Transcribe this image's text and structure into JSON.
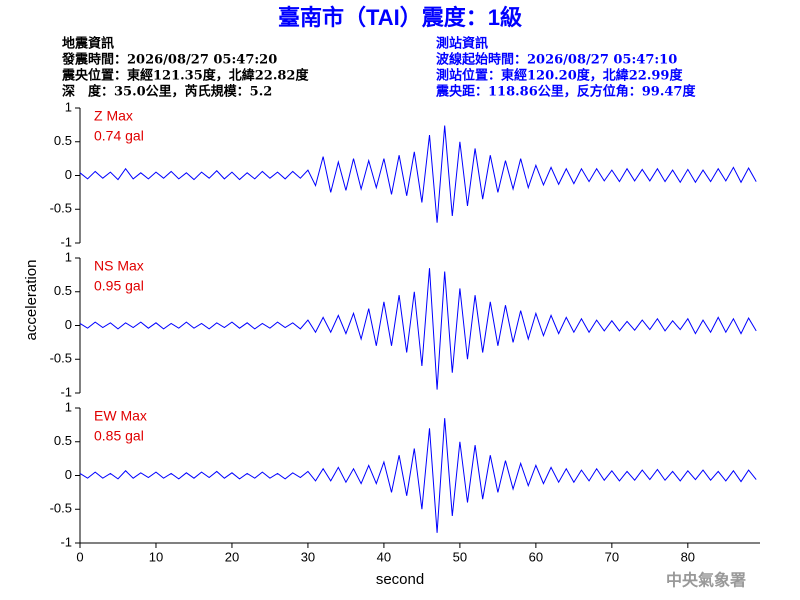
{
  "header": {
    "title": "臺南市（TAI）震度：1級",
    "event_info": [
      "地震資訊",
      "發震時間：2026/08/27 05:47:20",
      "震央位置：東經121.35度，北緯22.82度",
      "深　度：35.0公里，芮氏規模：5.2"
    ],
    "station_info": [
      "測站資訊",
      "波線起始時間：2026/08/27 05:47:10",
      "測站位置：東經120.20度，北緯22.99度",
      "震央距：118.86公里，反方位角：99.47度"
    ],
    "agency": "中央氣象署"
  },
  "chart_data": [
    {
      "type": "line",
      "title": "Z Max",
      "subtitle": "0.74 gal",
      "color": "#0000ff",
      "xlim": [
        0,
        89.5
      ],
      "ylim": [
        -1,
        1
      ],
      "yticks": [
        1,
        0.5,
        0,
        -0.5,
        -1
      ],
      "x": [
        0,
        1,
        2,
        3,
        4,
        5,
        6,
        7,
        8,
        9,
        10,
        11,
        12,
        13,
        14,
        15,
        16,
        17,
        18,
        19,
        20,
        21,
        22,
        23,
        24,
        25,
        26,
        27,
        28,
        29,
        30,
        31,
        32,
        33,
        34,
        35,
        36,
        37,
        38,
        39,
        40,
        41,
        42,
        43,
        44,
        45,
        46,
        47,
        48,
        49,
        50,
        51,
        52,
        53,
        54,
        55,
        56,
        57,
        58,
        59,
        60,
        61,
        62,
        63,
        64,
        65,
        66,
        67,
        68,
        69,
        70,
        71,
        72,
        73,
        74,
        75,
        76,
        77,
        78,
        79,
        80,
        81,
        82,
        83,
        84,
        85,
        86,
        87,
        88,
        89
      ],
      "values": [
        0.04,
        -0.05,
        0.06,
        -0.04,
        0.05,
        -0.06,
        0.1,
        -0.05,
        0.04,
        -0.05,
        0.05,
        -0.04,
        0.06,
        -0.05,
        0.04,
        -0.06,
        0.05,
        -0.04,
        0.07,
        -0.05,
        0.05,
        -0.06,
        0.04,
        -0.05,
        0.06,
        -0.04,
        0.05,
        -0.05,
        0.06,
        -0.04,
        0.08,
        -0.15,
        0.28,
        -0.25,
        0.2,
        -0.22,
        0.25,
        -0.2,
        0.22,
        -0.18,
        0.25,
        -0.28,
        0.3,
        -0.3,
        0.35,
        -0.4,
        0.6,
        -0.7,
        0.74,
        -0.6,
        0.5,
        -0.45,
        0.4,
        -0.35,
        0.3,
        -0.25,
        0.22,
        -0.2,
        0.25,
        -0.18,
        0.15,
        -0.14,
        0.12,
        -0.13,
        0.1,
        -0.12,
        0.1,
        -0.09,
        0.1,
        -0.08,
        0.08,
        -0.09,
        0.1,
        -0.08,
        0.09,
        -0.08,
        0.1,
        -0.09,
        0.08,
        -0.1,
        0.09,
        -0.1,
        0.08,
        -0.09,
        0.1,
        -0.08,
        0.12,
        -0.1,
        0.11,
        -0.09
      ]
    },
    {
      "type": "line",
      "title": "NS Max",
      "subtitle": "0.95 gal",
      "color": "#0000ff",
      "ylabel": "acceleration",
      "xlim": [
        0,
        89.5
      ],
      "ylim": [
        -1,
        1
      ],
      "yticks": [
        1,
        0.5,
        0,
        -0.5,
        -1
      ],
      "x": [
        0,
        1,
        2,
        3,
        4,
        5,
        6,
        7,
        8,
        9,
        10,
        11,
        12,
        13,
        14,
        15,
        16,
        17,
        18,
        19,
        20,
        21,
        22,
        23,
        24,
        25,
        26,
        27,
        28,
        29,
        30,
        31,
        32,
        33,
        34,
        35,
        36,
        37,
        38,
        39,
        40,
        41,
        42,
        43,
        44,
        45,
        46,
        47,
        48,
        49,
        50,
        51,
        52,
        53,
        54,
        55,
        56,
        57,
        58,
        59,
        60,
        61,
        62,
        63,
        64,
        65,
        66,
        67,
        68,
        69,
        70,
        71,
        72,
        73,
        74,
        75,
        76,
        77,
        78,
        79,
        80,
        81,
        82,
        83,
        84,
        85,
        86,
        87,
        88,
        89
      ],
      "values": [
        0.03,
        -0.04,
        0.05,
        -0.03,
        0.04,
        -0.05,
        0.04,
        -0.03,
        0.05,
        -0.04,
        0.04,
        -0.05,
        0.03,
        -0.04,
        0.05,
        -0.04,
        0.03,
        -0.05,
        0.04,
        -0.03,
        0.05,
        -0.04,
        0.04,
        -0.05,
        0.03,
        -0.04,
        0.05,
        -0.03,
        0.04,
        -0.05,
        0.08,
        -0.1,
        0.12,
        -0.1,
        0.15,
        -0.12,
        0.18,
        -0.2,
        0.25,
        -0.3,
        0.35,
        -0.3,
        0.45,
        -0.4,
        0.5,
        -0.6,
        0.85,
        -0.95,
        0.8,
        -0.7,
        0.55,
        -0.5,
        0.45,
        -0.4,
        0.35,
        -0.3,
        0.3,
        -0.25,
        0.22,
        -0.2,
        0.18,
        -0.15,
        0.15,
        -0.12,
        0.12,
        -0.1,
        0.1,
        -0.1,
        0.08,
        -0.08,
        0.07,
        -0.08,
        0.06,
        -0.07,
        0.08,
        -0.06,
        0.1,
        -0.08,
        0.07,
        -0.06,
        0.1,
        -0.12,
        0.08,
        -0.1,
        0.12,
        -0.1,
        0.1,
        -0.12,
        0.11,
        -0.08
      ]
    },
    {
      "type": "line",
      "title": "EW Max",
      "subtitle": "0.85 gal",
      "color": "#0000ff",
      "xlabel": "second",
      "xlim": [
        0,
        89.5
      ],
      "ylim": [
        -1,
        1
      ],
      "yticks": [
        1,
        0.5,
        0,
        -0.5,
        -1
      ],
      "xticks": [
        0,
        10,
        20,
        30,
        40,
        50,
        60,
        70,
        80
      ],
      "x": [
        0,
        1,
        2,
        3,
        4,
        5,
        6,
        7,
        8,
        9,
        10,
        11,
        12,
        13,
        14,
        15,
        16,
        17,
        18,
        19,
        20,
        21,
        22,
        23,
        24,
        25,
        26,
        27,
        28,
        29,
        30,
        31,
        32,
        33,
        34,
        35,
        36,
        37,
        38,
        39,
        40,
        41,
        42,
        43,
        44,
        45,
        46,
        47,
        48,
        49,
        50,
        51,
        52,
        53,
        54,
        55,
        56,
        57,
        58,
        59,
        60,
        61,
        62,
        63,
        64,
        65,
        66,
        67,
        68,
        69,
        70,
        71,
        72,
        73,
        74,
        75,
        76,
        77,
        78,
        79,
        80,
        81,
        82,
        83,
        84,
        85,
        86,
        87,
        88,
        89
      ],
      "values": [
        0.03,
        -0.04,
        0.05,
        -0.04,
        0.03,
        -0.05,
        0.07,
        -0.04,
        0.04,
        -0.03,
        0.05,
        -0.04,
        0.03,
        -0.05,
        0.04,
        -0.04,
        0.05,
        -0.03,
        0.06,
        -0.04,
        0.04,
        -0.05,
        0.03,
        -0.04,
        0.05,
        -0.04,
        0.03,
        -0.05,
        0.04,
        -0.03,
        0.06,
        -0.08,
        0.1,
        -0.08,
        0.12,
        -0.1,
        0.1,
        -0.12,
        0.15,
        -0.12,
        0.2,
        -0.25,
        0.3,
        -0.3,
        0.4,
        -0.5,
        0.7,
        -0.85,
        0.85,
        -0.6,
        0.5,
        -0.4,
        0.45,
        -0.35,
        0.3,
        -0.25,
        0.22,
        -0.2,
        0.18,
        -0.15,
        0.15,
        -0.12,
        0.12,
        -0.1,
        0.1,
        -0.1,
        0.08,
        -0.08,
        0.1,
        -0.07,
        0.07,
        -0.08,
        0.06,
        -0.07,
        0.08,
        -0.06,
        0.09,
        -0.07,
        0.06,
        -0.08,
        0.07,
        -0.06,
        0.08,
        -0.07,
        0.06,
        -0.08,
        0.07,
        -0.09,
        0.08,
        -0.06
      ]
    }
  ]
}
